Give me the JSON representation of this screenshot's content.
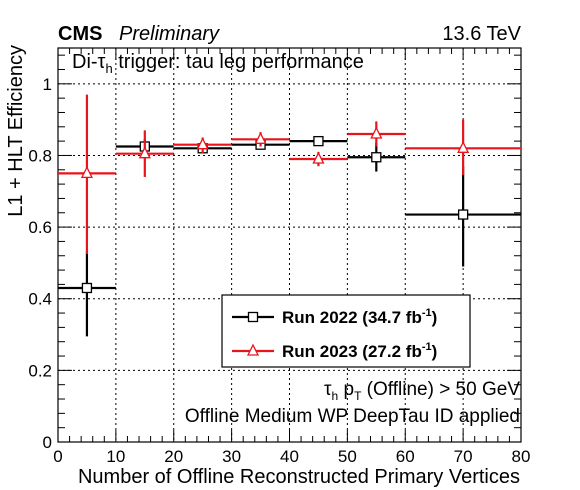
{
  "header": {
    "experiment": "CMS",
    "status": "Preliminary",
    "energy": "13.6 TeV"
  },
  "chart_data": {
    "type": "scatter",
    "title": "Di-τh trigger: tau leg performance",
    "title_parts": {
      "prefix": "Di-τ",
      "sub": "h",
      "rest": " trigger: tau leg performance"
    },
    "xlabel": "Number of Offline Reconstructed Primary Vertices",
    "ylabel": "L1 + HLT Efficiency",
    "xlim": [
      0,
      80
    ],
    "ylim": [
      0,
      1.1
    ],
    "xticks": [
      0,
      10,
      20,
      30,
      40,
      50,
      60,
      70,
      80
    ],
    "yticks": [
      0,
      0.2,
      0.4,
      0.6,
      0.8,
      1
    ],
    "ytick_labels": [
      "0",
      "0.2",
      "0.4",
      "0.6",
      "0.8",
      "1"
    ],
    "grid": true,
    "legend_position": "lower-right",
    "series": [
      {
        "name": "Run 2022 (34.7 fb-1)",
        "legend": {
          "text": "Run 2022 (34.7 fb",
          "sup": "-1",
          "close": ")"
        },
        "color": "#000000",
        "marker": "open-square",
        "points": [
          {
            "x": 5,
            "xlo": 0,
            "xhi": 10,
            "y": 0.43,
            "ylo": 0.295,
            "yhi": 0.53
          },
          {
            "x": 15,
            "xlo": 10,
            "xhi": 20,
            "y": 0.825,
            "ylo": 0.805,
            "yhi": 0.845
          },
          {
            "x": 25,
            "xlo": 20,
            "xhi": 30,
            "y": 0.82,
            "ylo": 0.81,
            "yhi": 0.83
          },
          {
            "x": 35,
            "xlo": 30,
            "xhi": 40,
            "y": 0.83,
            "ylo": 0.82,
            "yhi": 0.84
          },
          {
            "x": 45,
            "xlo": 40,
            "xhi": 50,
            "y": 0.84,
            "ylo": 0.83,
            "yhi": 0.85
          },
          {
            "x": 55,
            "xlo": 50,
            "xhi": 60,
            "y": 0.795,
            "ylo": 0.755,
            "yhi": 0.835
          },
          {
            "x": 70,
            "xlo": 60,
            "xhi": 80,
            "y": 0.635,
            "ylo": 0.49,
            "yhi": 0.77
          }
        ]
      },
      {
        "name": "Run 2023 (27.2 fb-1)",
        "legend": {
          "text": "Run 2023 (27.2 fb",
          "sup": "-1",
          "close": ")"
        },
        "color": "#e8141b",
        "marker": "open-triangle",
        "points": [
          {
            "x": 5,
            "xlo": 0,
            "xhi": 10,
            "y": 0.75,
            "ylo": 0.525,
            "yhi": 0.97
          },
          {
            "x": 15,
            "xlo": 10,
            "xhi": 20,
            "y": 0.805,
            "ylo": 0.74,
            "yhi": 0.87
          },
          {
            "x": 25,
            "xlo": 20,
            "xhi": 30,
            "y": 0.83,
            "ylo": 0.805,
            "yhi": 0.85
          },
          {
            "x": 35,
            "xlo": 30,
            "xhi": 40,
            "y": 0.845,
            "ylo": 0.825,
            "yhi": 0.865
          },
          {
            "x": 45,
            "xlo": 40,
            "xhi": 50,
            "y": 0.79,
            "ylo": 0.77,
            "yhi": 0.81
          },
          {
            "x": 55,
            "xlo": 50,
            "xhi": 60,
            "y": 0.86,
            "ylo": 0.825,
            "yhi": 0.895
          },
          {
            "x": 70,
            "xlo": 60,
            "xhi": 80,
            "y": 0.82,
            "ylo": 0.745,
            "yhi": 0.9
          }
        ]
      }
    ],
    "annotations": [
      {
        "text": "τh pT (Offline) > 50 GeV",
        "parts": {
          "tau": "τ",
          "tau_sub": "h",
          "p": " p",
          "p_sub": "T",
          "rest": " (Offline) > 50 GeV"
        }
      },
      {
        "text": "Offline Medium WP DeepTau ID applied"
      }
    ]
  }
}
